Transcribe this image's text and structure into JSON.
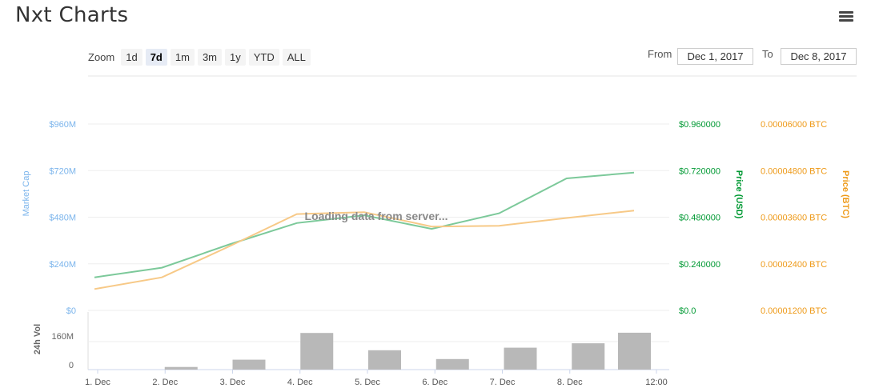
{
  "title": "Nxt Charts",
  "menu_icon": "hamburger-menu-icon",
  "zoom": {
    "label": "Zoom",
    "buttons": [
      "1d",
      "7d",
      "1m",
      "3m",
      "1y",
      "YTD",
      "ALL"
    ],
    "active": "7d"
  },
  "range": {
    "from_label": "From",
    "from_value": "Dec 1, 2017",
    "to_label": "To",
    "to_value": "Dec 8, 2017"
  },
  "loading_text": "Loading data from server...",
  "colors": {
    "market_cap": "#7cb5ec",
    "price_usd": "#7cc99a",
    "price_usd_axis": "#009933",
    "price_btc": "#f7c987",
    "price_btc_axis": "#ee9a19",
    "volume": "#b8b8b8"
  },
  "chart_data": {
    "type": "line",
    "x": [
      "1. Dec",
      "2. Dec",
      "3. Dec",
      "4. Dec",
      "5. Dec",
      "6. Dec",
      "7. Dec",
      "8. Dec",
      "12:00"
    ],
    "x_tick_labels": [
      "1. Dec",
      "2. Dec",
      "3. Dec",
      "4. Dec",
      "5. Dec",
      "6. Dec",
      "7. Dec",
      "8. Dec",
      "12:00"
    ],
    "y_left": {
      "label": "Market Cap",
      "ticks": [
        "$0",
        "$240M",
        "$480M",
        "$720M",
        "$960M"
      ],
      "ylim": [
        0,
        960
      ]
    },
    "y_right_usd": {
      "label": "Price (USD)",
      "ticks": [
        "$0.0",
        "$0.240000",
        "$0.480000",
        "$0.720000",
        "$0.960000"
      ],
      "ylim": [
        0,
        0.96
      ]
    },
    "y_right_btc": {
      "label": "Price (BTC)",
      "ticks": [
        "0.00001200 BTC",
        "0.00002400 BTC",
        "0.00003600 BTC",
        "0.00004800 BTC",
        "0.00006000 BTC"
      ],
      "ylim": [
        1.2e-05,
        6e-05
      ]
    },
    "series": [
      {
        "name": "Price (USD)",
        "axis": "usd",
        "values": [
          0.17,
          0.22,
          0.34,
          0.45,
          0.49,
          0.42,
          0.5,
          0.68,
          0.71
        ]
      },
      {
        "name": "Price (BTC)",
        "axis": "btc",
        "values": [
          1.75e-05,
          2.05e-05,
          2.85e-05,
          3.68e-05,
          3.73e-05,
          3.36e-05,
          3.38e-05,
          3.58e-05,
          3.77e-05
        ]
      }
    ],
    "volume": {
      "label": "24h Vol",
      "ticks": [
        "0",
        "160M"
      ],
      "ylim": [
        0,
        320
      ],
      "values": [
        0,
        12,
        45,
        167,
        88,
        48,
        100,
        120,
        168
      ]
    }
  }
}
